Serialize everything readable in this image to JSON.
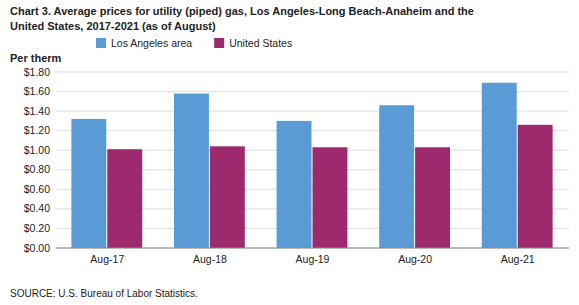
{
  "chart_data": {
    "type": "bar",
    "title": "Chart 3. Average prices for utility (piped) gas, Los Angeles-Long Beach-Anaheim and the",
    "subtitle": "United States, 2017-2021  (as of August)",
    "ylabel": "Per therm",
    "categories": [
      "Aug-17",
      "Aug-18",
      "Aug-19",
      "Aug-20",
      "Aug-21"
    ],
    "series": [
      {
        "name": "Los Angeles area",
        "color": "#5B9BD5",
        "values": [
          1.32,
          1.58,
          1.3,
          1.46,
          1.69
        ]
      },
      {
        "name": "United States",
        "color": "#9E2A6E",
        "values": [
          1.01,
          1.04,
          1.03,
          1.03,
          1.26
        ]
      }
    ],
    "ylim": [
      0.0,
      1.8
    ],
    "yticks": [
      {
        "value": 0.0,
        "label": "$0.00"
      },
      {
        "value": 0.2,
        "label": "$0.20"
      },
      {
        "value": 0.4,
        "label": "$0.40"
      },
      {
        "value": 0.6,
        "label": "$0.60"
      },
      {
        "value": 0.8,
        "label": "$0.80"
      },
      {
        "value": 1.0,
        "label": "$1.00"
      },
      {
        "value": 1.2,
        "label": "$1.20"
      },
      {
        "value": 1.4,
        "label": "$1.40"
      },
      {
        "value": 1.6,
        "label": "$1.60"
      },
      {
        "value": 1.8,
        "label": "$1.80"
      }
    ],
    "grid": true,
    "legend": "top",
    "annotations": [
      "SOURCE: U.S. Bureau of Labor Statistics."
    ]
  }
}
